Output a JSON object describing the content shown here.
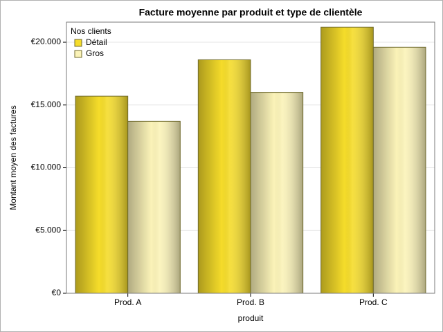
{
  "chart_data": {
    "type": "bar",
    "title": "Facture moyenne par produit et type de clientèle",
    "x_label": "produit",
    "y_label": "Montant moyen des factures",
    "legend_title": "Nos clients",
    "categories": [
      "Prod. A",
      "Prod. B",
      "Prod. C"
    ],
    "series": [
      {
        "name": "Détail",
        "color": "#f5dc2a",
        "values": [
          15700,
          18600,
          21200
        ]
      },
      {
        "name": "Gros",
        "color": "#fbf3b8",
        "values": [
          13700,
          16000,
          19600
        ]
      }
    ],
    "ylim": [
      0,
      21600
    ],
    "yticks": [
      {
        "value": 0,
        "label": "€0"
      },
      {
        "value": 5000,
        "label": "€5.000"
      },
      {
        "value": 10000,
        "label": "€10.000"
      },
      {
        "value": 15000,
        "label": "€15.000"
      },
      {
        "value": 20000,
        "label": "€20.000"
      }
    ],
    "grid": true,
    "legend_position": "top-left"
  }
}
